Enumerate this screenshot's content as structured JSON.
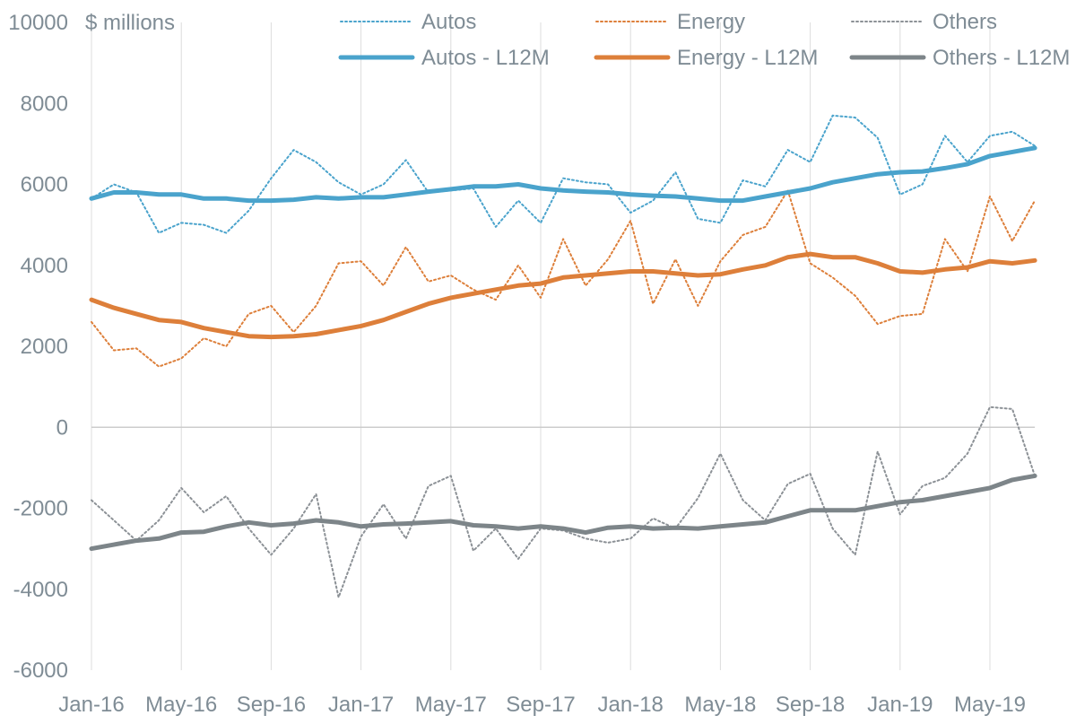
{
  "chart_data": {
    "type": "line",
    "ylabel": "$ millions",
    "ylim": [
      -6000,
      10000
    ],
    "yticks": [
      "10000",
      "8000",
      "6000",
      "4000",
      "2000",
      "0",
      "-2000",
      "-4000",
      "-6000"
    ],
    "ytick_values": [
      10000,
      8000,
      6000,
      4000,
      2000,
      0,
      -2000,
      -4000,
      -6000
    ],
    "xtick_labels": [
      "Jan-16",
      "May-16",
      "Sep-16",
      "Jan-17",
      "May-17",
      "Sep-17",
      "Jan-18",
      "May-18",
      "Sep-18",
      "Jan-19",
      "May-19"
    ],
    "xtick_index": [
      0,
      4,
      8,
      12,
      16,
      20,
      24,
      28,
      32,
      36,
      40
    ],
    "x": [
      "Jan-16",
      "Feb-16",
      "Mar-16",
      "Apr-16",
      "May-16",
      "Jun-16",
      "Jul-16",
      "Aug-16",
      "Sep-16",
      "Oct-16",
      "Nov-16",
      "Dec-16",
      "Jan-17",
      "Feb-17",
      "Mar-17",
      "Apr-17",
      "May-17",
      "Jun-17",
      "Jul-17",
      "Aug-17",
      "Sep-17",
      "Oct-17",
      "Nov-17",
      "Dec-17",
      "Jan-18",
      "Feb-18",
      "Mar-18",
      "Apr-18",
      "May-18",
      "Jun-18",
      "Jul-18",
      "Aug-18",
      "Sep-18",
      "Oct-18",
      "Nov-18",
      "Dec-18",
      "Jan-19",
      "Feb-19",
      "Mar-19",
      "Apr-19",
      "May-19",
      "Jun-19",
      "Jul-19"
    ],
    "grid": "vertical",
    "legend_position": "top",
    "series": [
      {
        "name": "Autos",
        "style": "dotted",
        "color": "#4aa3cc",
        "values": [
          5650,
          6000,
          5800,
          4800,
          5050,
          5000,
          4800,
          5350,
          6150,
          6850,
          6550,
          6050,
          5750,
          6000,
          6600,
          5800,
          5850,
          5900,
          4950,
          5600,
          5050,
          6150,
          6050,
          6000,
          5300,
          5600,
          6300,
          5150,
          5050,
          6100,
          5950,
          6850,
          6550,
          7700,
          7650,
          7150,
          5750,
          6000,
          7200,
          6550,
          7200,
          7300,
          6950
        ]
      },
      {
        "name": "Energy",
        "style": "dotted",
        "color": "#dd7f3a",
        "values": [
          2600,
          1900,
          1950,
          1500,
          1700,
          2200,
          2000,
          2800,
          3000,
          2350,
          3000,
          4050,
          4100,
          3500,
          4450,
          3600,
          3750,
          3400,
          3150,
          4000,
          3200,
          4650,
          3500,
          4150,
          5100,
          3050,
          4150,
          3000,
          4100,
          4750,
          4950,
          5850,
          4050,
          3700,
          3250,
          2550,
          2750,
          2800,
          4650,
          3850,
          5700,
          4600,
          5600
        ]
      },
      {
        "name": "Others",
        "style": "dotted",
        "color": "#8c9196",
        "values": [
          -1800,
          -2300,
          -2800,
          -2300,
          -1500,
          -2100,
          -1700,
          -2500,
          -3150,
          -2500,
          -1650,
          -4200,
          -2700,
          -1900,
          -2750,
          -1450,
          -1200,
          -3050,
          -2500,
          -3250,
          -2500,
          -2550,
          -2750,
          -2850,
          -2750,
          -2250,
          -2500,
          -1750,
          -650,
          -1800,
          -2300,
          -1400,
          -1150,
          -2500,
          -3150,
          -600,
          -2150,
          -1450,
          -1250,
          -650,
          500,
          450,
          -1200
        ]
      },
      {
        "name": "Autos - L12M",
        "style": "solid",
        "color": "#4aa3cc",
        "values": [
          5650,
          5800,
          5800,
          5750,
          5750,
          5650,
          5650,
          5600,
          5600,
          5620,
          5680,
          5650,
          5680,
          5680,
          5750,
          5820,
          5880,
          5950,
          5950,
          6000,
          5900,
          5850,
          5820,
          5800,
          5750,
          5720,
          5700,
          5650,
          5600,
          5600,
          5700,
          5800,
          5900,
          6050,
          6150,
          6250,
          6300,
          6320,
          6400,
          6500,
          6700,
          6800,
          6900
        ]
      },
      {
        "name": "Energy - L12M",
        "style": "solid",
        "color": "#dd7f3a",
        "values": [
          3150,
          2950,
          2800,
          2650,
          2600,
          2450,
          2350,
          2250,
          2230,
          2250,
          2300,
          2400,
          2500,
          2650,
          2850,
          3050,
          3200,
          3300,
          3400,
          3500,
          3550,
          3700,
          3750,
          3800,
          3850,
          3850,
          3800,
          3750,
          3780,
          3900,
          4000,
          4200,
          4280,
          4200,
          4200,
          4050,
          3850,
          3820,
          3900,
          3950,
          4100,
          4050,
          4120
        ]
      },
      {
        "name": "Others - L12M",
        "style": "solid",
        "color": "#7d8589",
        "values": [
          -3000,
          -2900,
          -2800,
          -2750,
          -2600,
          -2580,
          -2450,
          -2350,
          -2420,
          -2380,
          -2300,
          -2350,
          -2450,
          -2400,
          -2380,
          -2350,
          -2320,
          -2420,
          -2450,
          -2500,
          -2450,
          -2500,
          -2600,
          -2480,
          -2450,
          -2500,
          -2480,
          -2500,
          -2450,
          -2400,
          -2350,
          -2200,
          -2050,
          -2050,
          -2050,
          -1950,
          -1850,
          -1800,
          -1700,
          -1600,
          -1500,
          -1300,
          -1200
        ]
      }
    ]
  }
}
